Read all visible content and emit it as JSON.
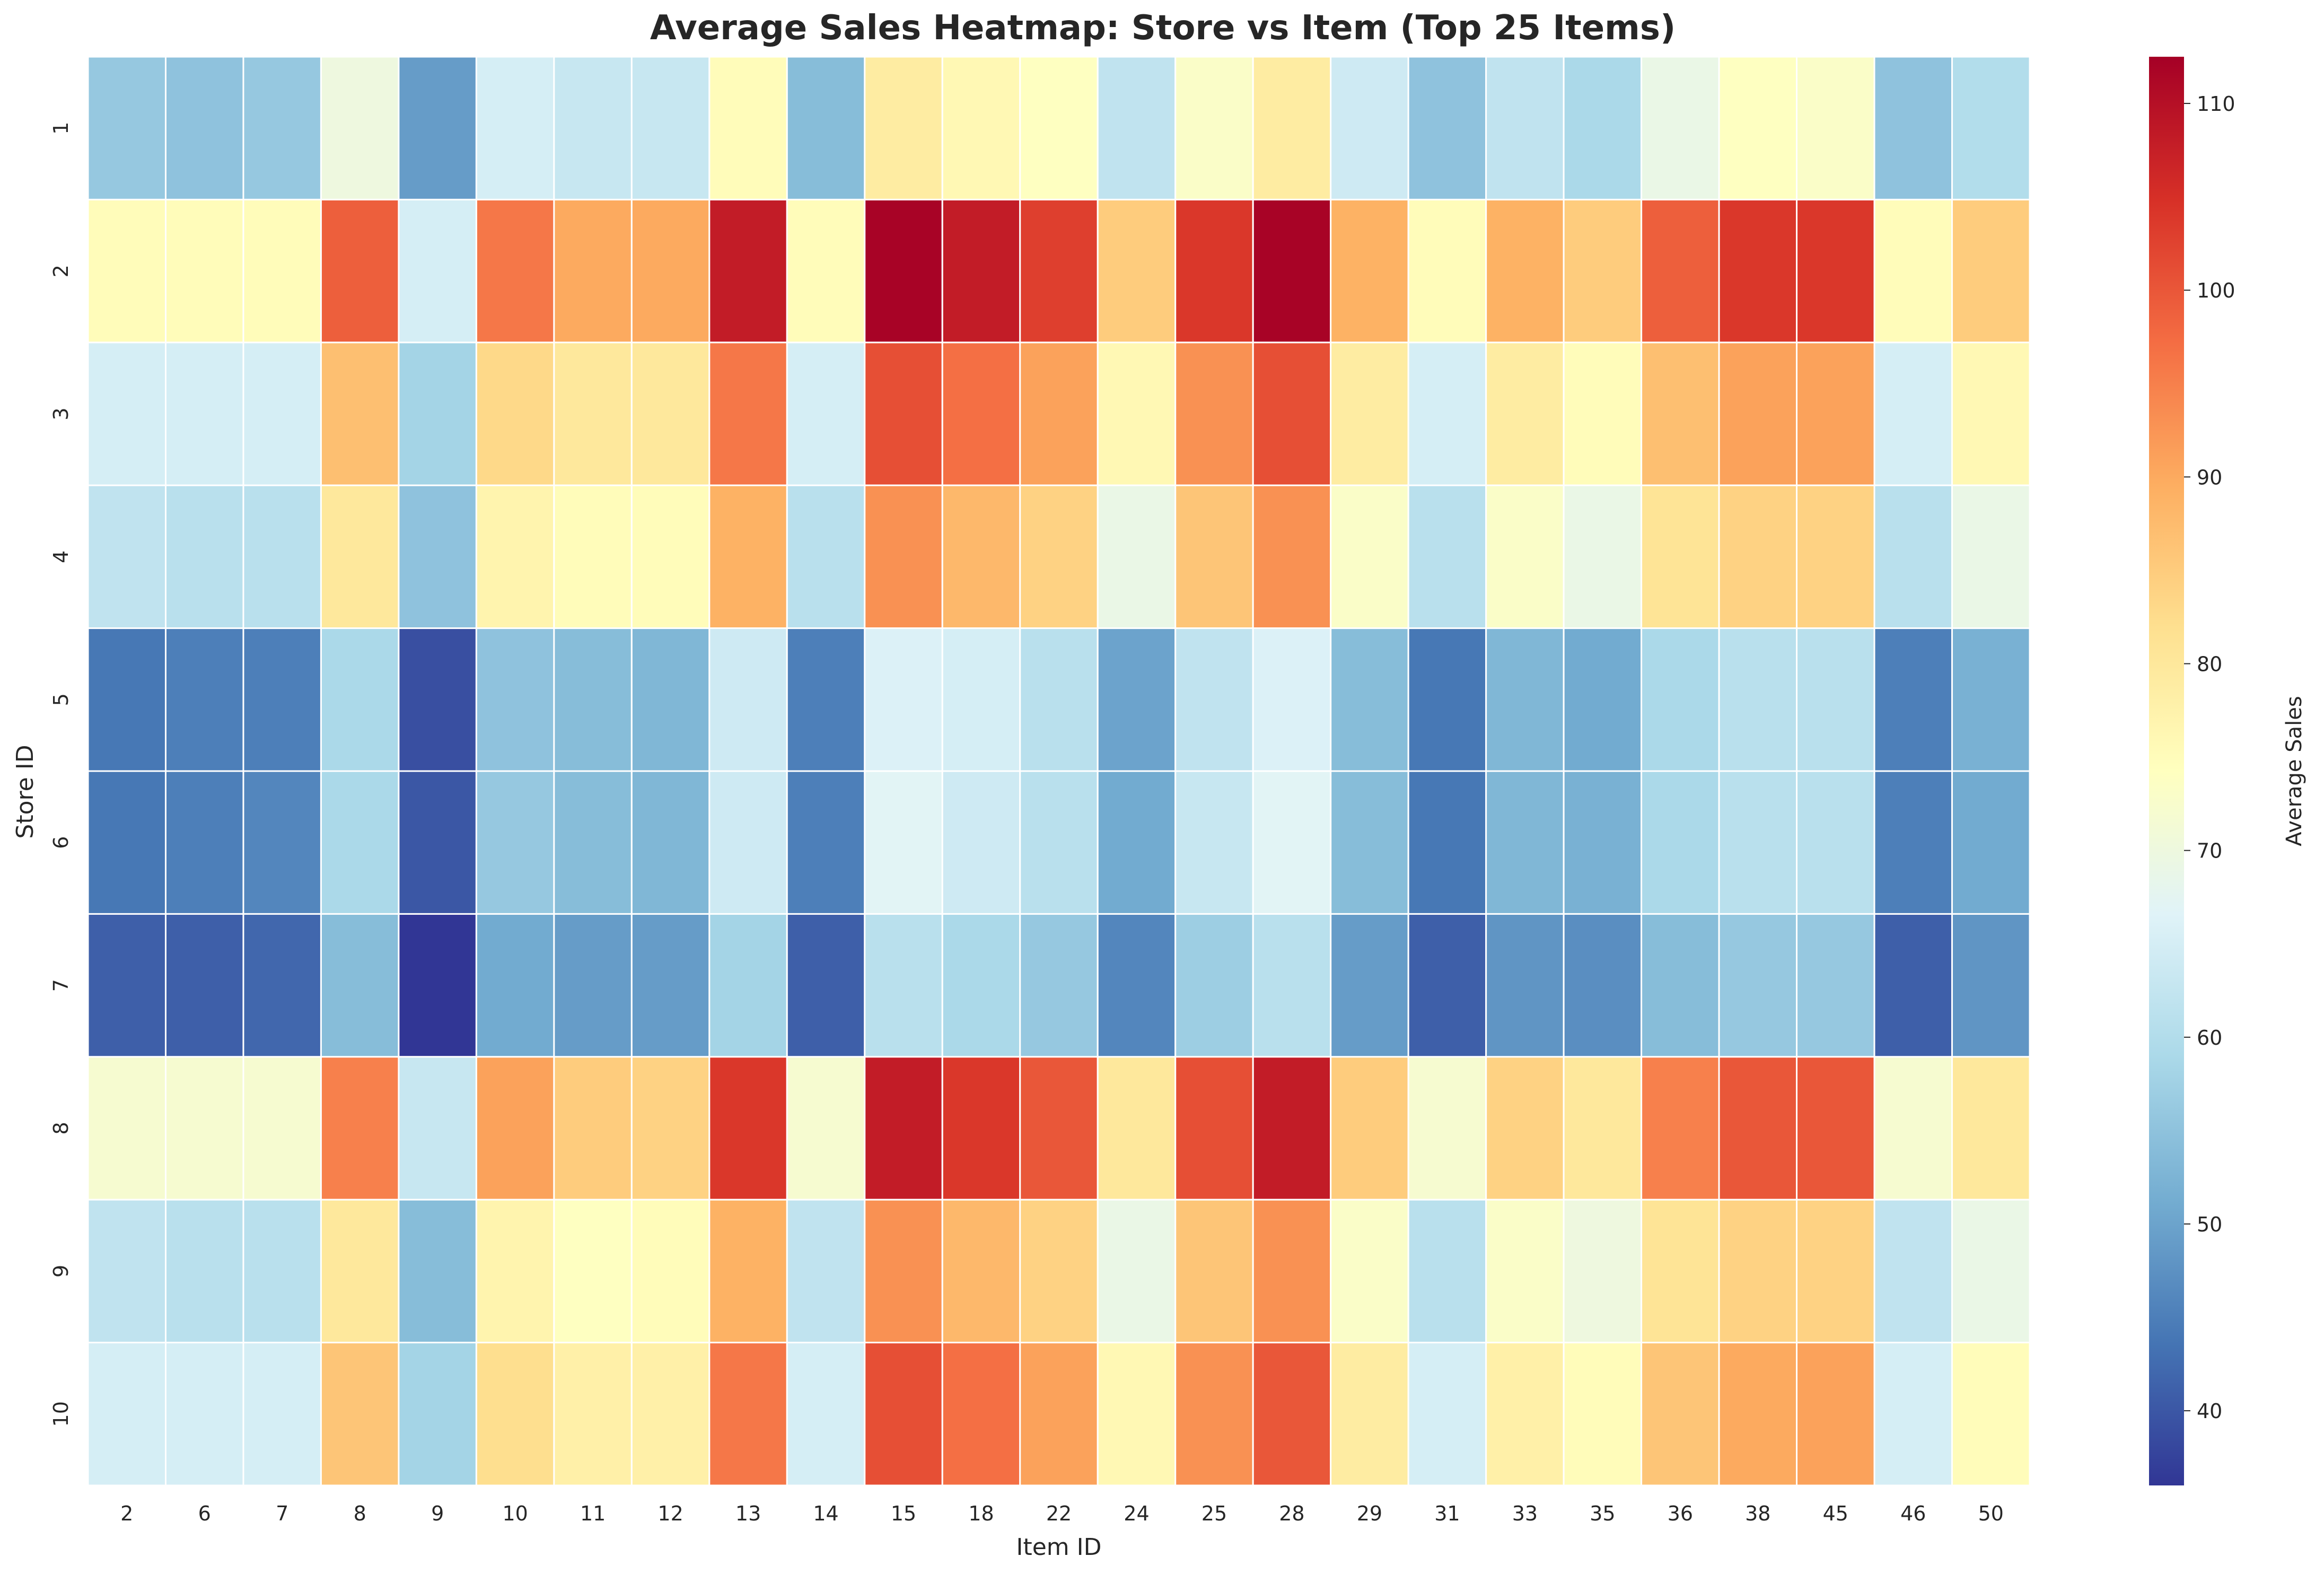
{
  "chart_data": {
    "type": "heatmap",
    "title": "Average Sales Heatmap: Store vs Item (Top 25 Items)",
    "xlabel": "Item ID",
    "ylabel": "Store ID",
    "colorbar_label": "Average Sales",
    "x_categories": [
      "2",
      "6",
      "7",
      "8",
      "9",
      "10",
      "11",
      "12",
      "13",
      "14",
      "15",
      "18",
      "22",
      "24",
      "25",
      "28",
      "29",
      "31",
      "33",
      "35",
      "36",
      "38",
      "45",
      "46",
      "50"
    ],
    "y_categories": [
      "1",
      "2",
      "3",
      "4",
      "5",
      "6",
      "7",
      "8",
      "9",
      "10"
    ],
    "color_range": [
      36,
      112.5
    ],
    "colorbar_ticks": [
      40,
      50,
      60,
      70,
      80,
      90,
      100,
      110
    ],
    "colormap": "RdYlBu_r",
    "grid_lines": "white",
    "values": [
      [
        56,
        55,
        56,
        70,
        49,
        65,
        63,
        63,
        75,
        54,
        79,
        76,
        74,
        62,
        73,
        79,
        64,
        55,
        62,
        59,
        69,
        74,
        73,
        55,
        60
      ],
      [
        75,
        75,
        75,
        99,
        65,
        96,
        90,
        90,
        108,
        75,
        112,
        108,
        103,
        85,
        104,
        112,
        89,
        75,
        89,
        85,
        99,
        104,
        104,
        75,
        85
      ],
      [
        65,
        65,
        65,
        87,
        58,
        83,
        80,
        80,
        96,
        65,
        101,
        97,
        91,
        76,
        93,
        101,
        79,
        65,
        79,
        75,
        87,
        91,
        91,
        65,
        76
      ],
      [
        62,
        61,
        61,
        80,
        55,
        77,
        75,
        75,
        89,
        61,
        93,
        88,
        84,
        69,
        86,
        93,
        73,
        61,
        73,
        69,
        81,
        84,
        84,
        61,
        69
      ],
      [
        44,
        45,
        45,
        59,
        39,
        55,
        54,
        53,
        64,
        45,
        66,
        65,
        61,
        50,
        62,
        66,
        54,
        44,
        53,
        51,
        59,
        61,
        61,
        45,
        52
      ],
      [
        44,
        45,
        46,
        59,
        40,
        56,
        54,
        53,
        64,
        45,
        67,
        64,
        61,
        51,
        63,
        67,
        54,
        44,
        53,
        52,
        59,
        61,
        61,
        45,
        51
      ],
      [
        41,
        41,
        42,
        54,
        36,
        51,
        49,
        49,
        58,
        41,
        61,
        59,
        56,
        46,
        57,
        61,
        49,
        41,
        48,
        47,
        54,
        56,
        56,
        41,
        48
      ],
      [
        72,
        72,
        72,
        95,
        63,
        91,
        85,
        84,
        104,
        72,
        108,
        104,
        100,
        80,
        101,
        108,
        85,
        72,
        84,
        80,
        95,
        100,
        100,
        72,
        80
      ],
      [
        62,
        61,
        61,
        80,
        54,
        77,
        74,
        75,
        89,
        62,
        93,
        88,
        84,
        69,
        86,
        93,
        73,
        61,
        73,
        70,
        81,
        84,
        84,
        62,
        69
      ],
      [
        65,
        65,
        65,
        86,
        58,
        82,
        78,
        78,
        96,
        65,
        101,
        97,
        91,
        76,
        93,
        100,
        79,
        65,
        78,
        75,
        86,
        90,
        91,
        65,
        75
      ]
    ]
  }
}
